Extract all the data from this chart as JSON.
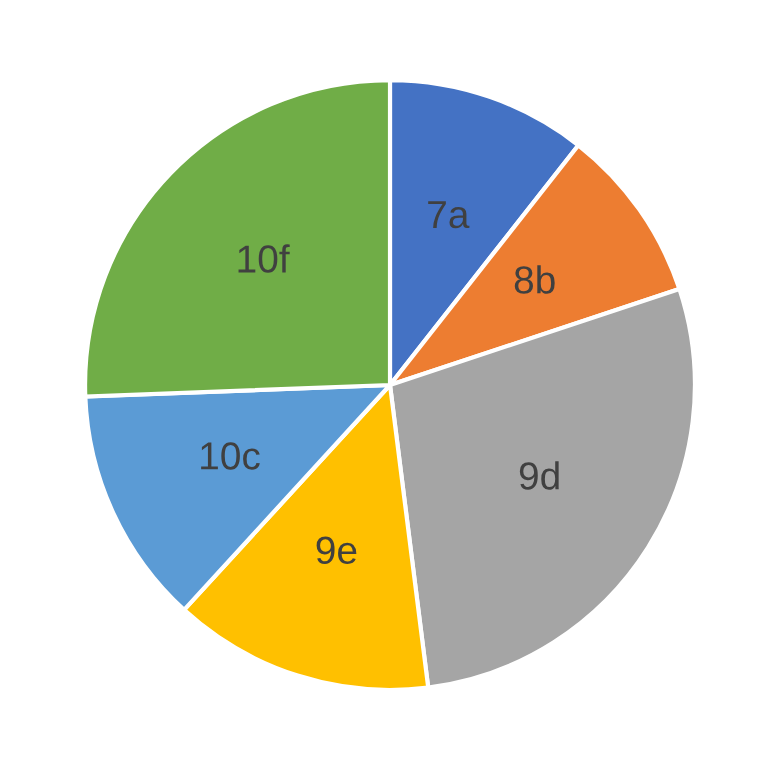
{
  "chart_data": {
    "type": "pie",
    "categories": [
      "7a",
      "8b",
      "9d",
      "9e",
      "10c",
      "10f"
    ],
    "values": [
      10.6,
      9.3,
      28.1,
      13.8,
      12.6,
      25.6
    ],
    "colors": [
      "#4472c4",
      "#ed7d31",
      "#a5a5a5",
      "#ffc000",
      "#5b9bd5",
      "#70ad47"
    ],
    "legend": false
  }
}
